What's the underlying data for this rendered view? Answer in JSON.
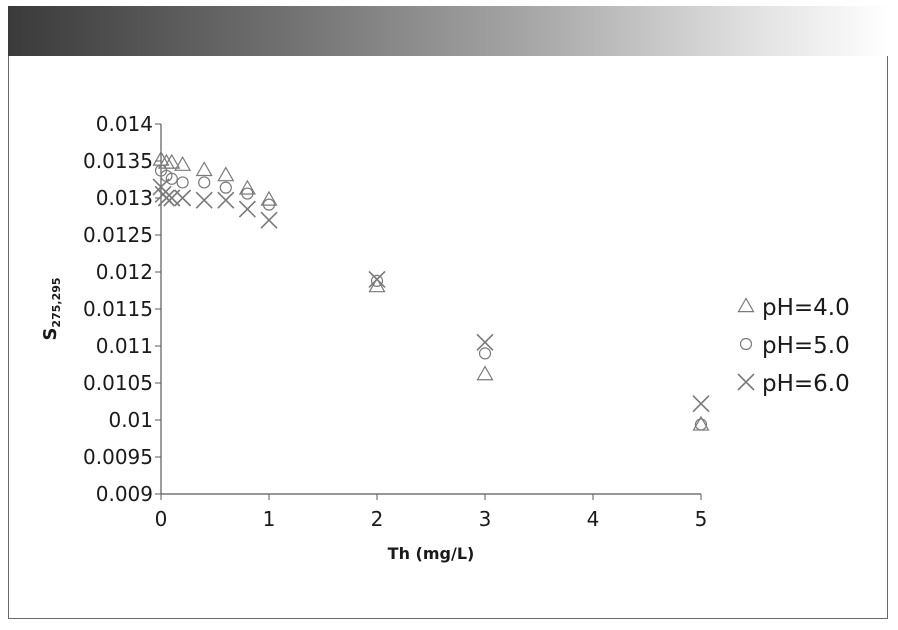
{
  "chart_data": {
    "type": "scatter",
    "title": "",
    "xlabel": "Th (mg/L)",
    "ylabel": {
      "main": "S",
      "subscript": "275,295"
    },
    "xlim": [
      0,
      5
    ],
    "ylim": [
      0.009,
      0.014
    ],
    "x_ticks": [
      "0",
      "1",
      "2",
      "3",
      "4",
      "5"
    ],
    "y_ticks": [
      "0.009",
      "0.0095",
      "0.01",
      "0.0105",
      "0.011",
      "0.0115",
      "0.012",
      "0.0125",
      "0.013",
      "0.0135",
      "0.014"
    ],
    "grid": false,
    "legend_position": "right",
    "series": [
      {
        "name": "pH=4.0",
        "marker": "triangle",
        "x": [
          0,
          0.05,
          0.1,
          0.2,
          0.4,
          0.6,
          0.8,
          1.0,
          2,
          3,
          5
        ],
        "y": [
          0.01352,
          0.01348,
          0.01348,
          0.01345,
          0.01338,
          0.01331,
          0.01313,
          0.01298,
          0.01181,
          0.01062,
          0.00994
        ]
      },
      {
        "name": "pH=5.0",
        "marker": "circle",
        "x": [
          0,
          0.05,
          0.1,
          0.2,
          0.4,
          0.6,
          0.8,
          1.0,
          2,
          3,
          5
        ],
        "y": [
          0.01337,
          0.0133,
          0.01326,
          0.01321,
          0.01321,
          0.01314,
          0.01306,
          0.01291,
          0.01188,
          0.0109,
          0.00994
        ]
      },
      {
        "name": "pH=6.0",
        "marker": "cross",
        "x": [
          0,
          0.02,
          0.05,
          0.1,
          0.2,
          0.4,
          0.6,
          0.8,
          1.0,
          2,
          3,
          5
        ],
        "y": [
          0.01315,
          0.01305,
          0.013,
          0.013,
          0.013,
          0.01297,
          0.01297,
          0.01285,
          0.0127,
          0.0119,
          0.01105,
          0.01022
        ]
      }
    ],
    "colors": {
      "marker": "#7a7a7a",
      "axis": "#5a5a5a",
      "text": "#1a1a1a"
    }
  }
}
